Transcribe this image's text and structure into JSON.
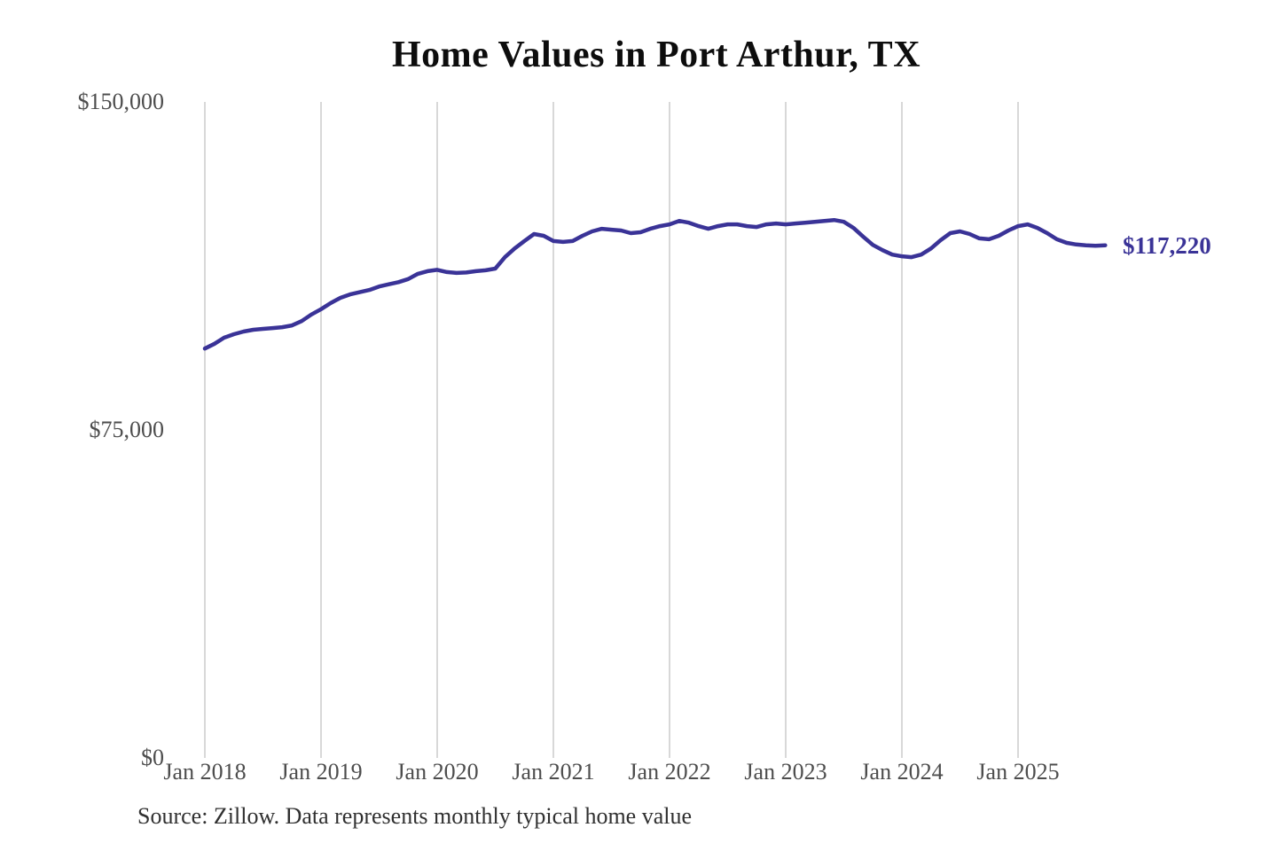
{
  "chart": {
    "title": "Home Values in Port Arthur, TX",
    "source_note": "Source: Zillow. Data represents monthly typical home value",
    "end_label": "$117,220"
  },
  "chart_data": {
    "type": "line",
    "title": "Home Values in Port Arthur, TX",
    "x_start": "2018-01",
    "x_interval": "month",
    "x_tick_labels": [
      "Jan 2018",
      "Jan 2019",
      "Jan 2020",
      "Jan 2021",
      "Jan 2022",
      "Jan 2023",
      "Jan 2024",
      "Jan 2025"
    ],
    "x_tick_month_indices": [
      0,
      12,
      24,
      36,
      48,
      60,
      72,
      84
    ],
    "y_ticks": [
      {
        "label": "$150,000",
        "value": 150000
      },
      {
        "label": "$75,000",
        "value": 75000
      },
      {
        "label": "$0",
        "value": 0
      }
    ],
    "ylim": [
      0,
      150000
    ],
    "grid": "vertical",
    "legend": "none",
    "line_color": "#3a3397",
    "grid_color": "#cccccc",
    "annotation": {
      "text": "$117,220",
      "value": 117220,
      "position": "end-of-line"
    },
    "series": [
      {
        "name": "Monthly typical home value",
        "values": [
          93600,
          94700,
          96100,
          96900,
          97500,
          97900,
          98100,
          98300,
          98500,
          98900,
          99900,
          101400,
          102600,
          104000,
          105200,
          106000,
          106500,
          107000,
          107800,
          108300,
          108800,
          109500,
          110700,
          111300,
          111600,
          111100,
          110900,
          111000,
          111300,
          111500,
          111900,
          114500,
          116500,
          118200,
          119800,
          119400,
          118200,
          118000,
          118200,
          119400,
          120400,
          121000,
          120800,
          120600,
          120000,
          120200,
          121000,
          121600,
          122000,
          122800,
          122400,
          121600,
          121000,
          121600,
          122000,
          122000,
          121600,
          121400,
          122000,
          122200,
          122000,
          122200,
          122400,
          122600,
          122800,
          123000,
          122600,
          121200,
          119200,
          117300,
          116100,
          115100,
          114700,
          114500,
          115100,
          116500,
          118400,
          120000,
          120400,
          119800,
          118800,
          118600,
          119400,
          120600,
          121600,
          122000,
          121200,
          120000,
          118600,
          117800,
          117400,
          117200,
          117100,
          117220
        ]
      }
    ]
  }
}
